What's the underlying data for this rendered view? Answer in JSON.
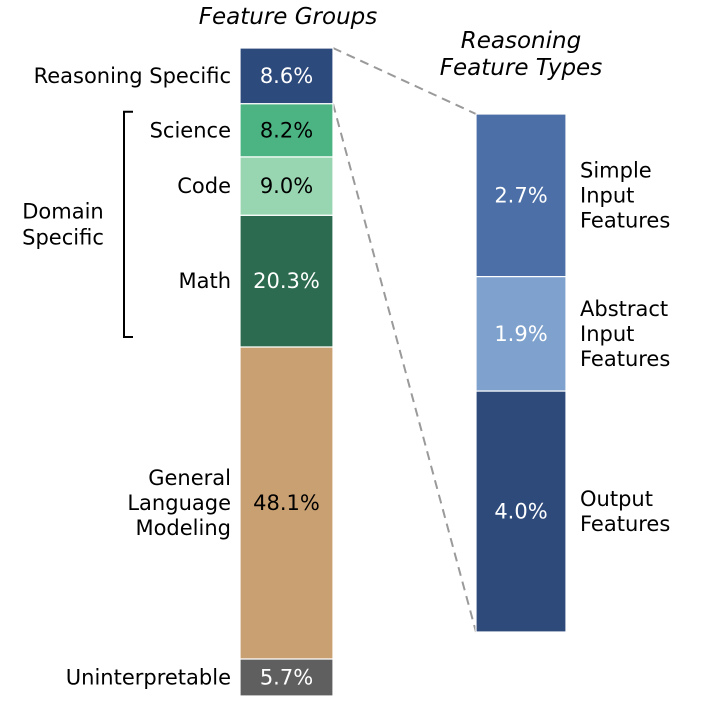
{
  "chart_data": [
    {
      "type": "stacked-bar",
      "title": "Feature Groups",
      "unit": "%",
      "segments": [
        {
          "label": "Reasoning Specific",
          "value": 8.6,
          "value_label": "8.6%",
          "color": "#2d4a7c",
          "text_color": "#ffffff"
        },
        {
          "label": "Science",
          "value": 8.2,
          "value_label": "8.2%",
          "color": "#4cb483",
          "text_color": "#000000"
        },
        {
          "label": "Code",
          "value": 9.0,
          "value_label": "9.0%",
          "color": "#97d6b0",
          "text_color": "#000000"
        },
        {
          "label": "Math",
          "value": 20.3,
          "value_label": "20.3%",
          "color": "#2c6b4f",
          "text_color": "#ffffff"
        },
        {
          "label": "General\nLanguage\nModeling",
          "value": 48.1,
          "value_label": "48.1%",
          "color": "#c9a072",
          "text_color": "#000000"
        },
        {
          "label": "Uninterpretable",
          "value": 5.7,
          "value_label": "5.7%",
          "color": "#5f5f5f",
          "text_color": "#ffffff"
        }
      ],
      "bracket": {
        "label": "Domain\nSpecific",
        "segments": [
          "Science",
          "Code",
          "Math"
        ]
      }
    },
    {
      "type": "stacked-bar",
      "title": "Reasoning\nFeature Types",
      "unit": "%",
      "breakdown_of": "Reasoning Specific",
      "segments": [
        {
          "label": "Simple\nInput\nFeatures",
          "value": 2.7,
          "value_label": "2.7%",
          "color": "#4b6fa6",
          "text_color": "#ffffff"
        },
        {
          "label": "Abstract\nInput\nFeatures",
          "value": 1.9,
          "value_label": "1.9%",
          "color": "#7ea1cd",
          "text_color": "#ffffff"
        },
        {
          "label": "Output\nFeatures",
          "value": 4.0,
          "value_label": "4.0%",
          "color": "#2e4a7b",
          "text_color": "#ffffff"
        }
      ]
    }
  ]
}
